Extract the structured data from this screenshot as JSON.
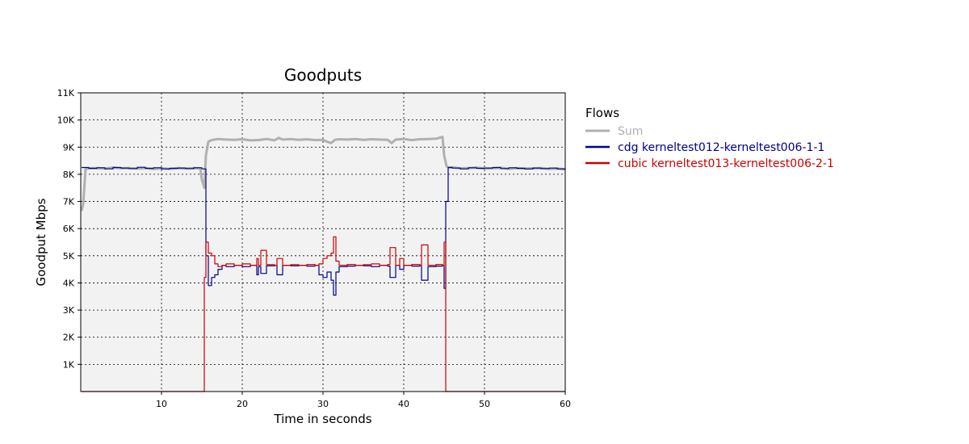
{
  "chart_data": {
    "type": "line",
    "title": "Goodputs",
    "xlabel": "Time in seconds",
    "ylabel": "Goodput Mbps",
    "xlim": [
      0,
      60
    ],
    "ylim": [
      0,
      11000
    ],
    "x_ticks": [
      10,
      20,
      30,
      40,
      50,
      60
    ],
    "x_tick_labels": [
      "10",
      "20",
      "30",
      "40",
      "50",
      "60"
    ],
    "y_ticks": [
      1000,
      2000,
      3000,
      4000,
      5000,
      6000,
      7000,
      8000,
      9000,
      10000,
      11000
    ],
    "y_tick_labels": [
      "1K",
      "2K",
      "3K",
      "4K",
      "5K",
      "6K",
      "7K",
      "8K",
      "9K",
      "10K",
      "11K"
    ],
    "grid": true,
    "legend_title": "Flows",
    "legend_placement": "right",
    "colors": {
      "plot_bg": "#f2f2f2",
      "grid": "#000000"
    },
    "series": [
      {
        "name": "Sum",
        "color": "#b0b0b0",
        "x": [
          0.1,
          0.3,
          0.6,
          1,
          2,
          3,
          4,
          5,
          6,
          7,
          8,
          9,
          10,
          11,
          12,
          13,
          14,
          14.8,
          15.0,
          15.3,
          15.5,
          15.8,
          16.2,
          17,
          18,
          19,
          20,
          21,
          22,
          23,
          24,
          24.5,
          25,
          26,
          27,
          28,
          29,
          30,
          30.5,
          31,
          31.5,
          32,
          33,
          34,
          35,
          36,
          37,
          38,
          38.5,
          39,
          40,
          41,
          42,
          43,
          44,
          44.5,
          44.8,
          45.0,
          45.3,
          45.5,
          46,
          47,
          48,
          49,
          50,
          51,
          52,
          53,
          54,
          55,
          56,
          57,
          58,
          59,
          60
        ],
        "y": [
          6650,
          6900,
          8200,
          8220,
          8230,
          8210,
          8250,
          8220,
          8230,
          8210,
          8230,
          8190,
          8220,
          8200,
          8230,
          8210,
          8230,
          8220,
          7800,
          7500,
          8700,
          9200,
          9260,
          9300,
          9280,
          9270,
          9290,
          9250,
          9260,
          9300,
          9250,
          9340,
          9280,
          9300,
          9270,
          9290,
          9260,
          9270,
          9200,
          9150,
          9270,
          9290,
          9280,
          9300,
          9270,
          9290,
          9280,
          9270,
          9150,
          9280,
          9300,
          9260,
          9290,
          9300,
          9310,
          9350,
          9380,
          8700,
          8300,
          8250,
          8260,
          8220,
          8230,
          8250,
          8210,
          8220,
          8240,
          8200,
          8230,
          8210,
          8220,
          8230,
          8200,
          8210,
          8180
        ]
      },
      {
        "name": "cdg kerneltest012-kerneltest006-1-1",
        "color": "#00008b",
        "x": [
          0.1,
          1,
          2,
          3,
          4,
          5,
          6,
          7,
          8,
          9,
          10,
          11,
          12,
          13,
          14,
          15.0,
          15.5,
          15.8,
          16.2,
          16.6,
          17.0,
          17.5,
          18,
          19,
          20,
          21,
          21.8,
          22,
          22.3,
          23,
          24,
          24.3,
          25,
          26,
          27,
          28,
          29,
          29.5,
          30,
          30.5,
          31,
          31.3,
          31.6,
          32,
          33,
          34,
          35,
          36,
          37,
          38,
          38.3,
          39,
          39.5,
          40,
          41,
          42,
          42.2,
          43,
          44,
          44.8,
          45.0,
          45.2,
          45.5,
          46,
          47,
          48,
          49,
          50,
          51,
          52,
          53,
          54,
          55,
          56,
          57,
          58,
          59,
          60
        ],
        "y": [
          8250,
          8220,
          8240,
          8200,
          8250,
          8230,
          8210,
          8260,
          8220,
          8240,
          8200,
          8220,
          8230,
          8210,
          8240,
          8200,
          5000,
          3900,
          4200,
          4300,
          4500,
          4650,
          4600,
          4650,
          4600,
          4650,
          4300,
          4600,
          4350,
          4630,
          4650,
          4300,
          4650,
          4630,
          4650,
          4620,
          4650,
          4300,
          4200,
          4400,
          4100,
          3550,
          4400,
          4600,
          4620,
          4650,
          4630,
          4600,
          4650,
          4620,
          4200,
          4650,
          4500,
          4650,
          4620,
          4650,
          4100,
          4600,
          4620,
          4650,
          3800,
          7000,
          8250,
          8230,
          8200,
          8240,
          8220,
          8230,
          8250,
          8210,
          8240,
          8220,
          8200,
          8230,
          8210,
          8230,
          8200,
          8170
        ]
      },
      {
        "name": "cubic kerneltest013-kerneltest006-2-1",
        "color": "#cc0000",
        "x": [
          0.1,
          5,
          10,
          15.2,
          15.3,
          15.5,
          15.8,
          16.2,
          16.6,
          17.0,
          17.5,
          18,
          19,
          20,
          21,
          21.8,
          22,
          22.3,
          23,
          24,
          24.3,
          25,
          26,
          27,
          28,
          29,
          29.5,
          30,
          30.5,
          31,
          31.3,
          31.6,
          32,
          33,
          34,
          35,
          36,
          37,
          38,
          38.3,
          39,
          39.5,
          40,
          41,
          42,
          42.2,
          43,
          44,
          44.8,
          45.0,
          45.2,
          45.3,
          46,
          50,
          55,
          60
        ],
        "y": [
          0,
          0,
          0,
          0,
          4200,
          5500,
          5100,
          5000,
          4700,
          4600,
          4650,
          4700,
          4650,
          4700,
          4650,
          4900,
          4650,
          5200,
          4670,
          4650,
          4900,
          4650,
          4670,
          4650,
          4680,
          4650,
          4700,
          4900,
          5000,
          5100,
          5700,
          4800,
          4650,
          4680,
          4650,
          4670,
          4700,
          4650,
          4680,
          5300,
          4650,
          4900,
          4650,
          4680,
          4650,
          5400,
          4650,
          4680,
          4650,
          5500,
          0,
          0,
          0,
          0,
          0,
          0
        ]
      }
    ]
  }
}
